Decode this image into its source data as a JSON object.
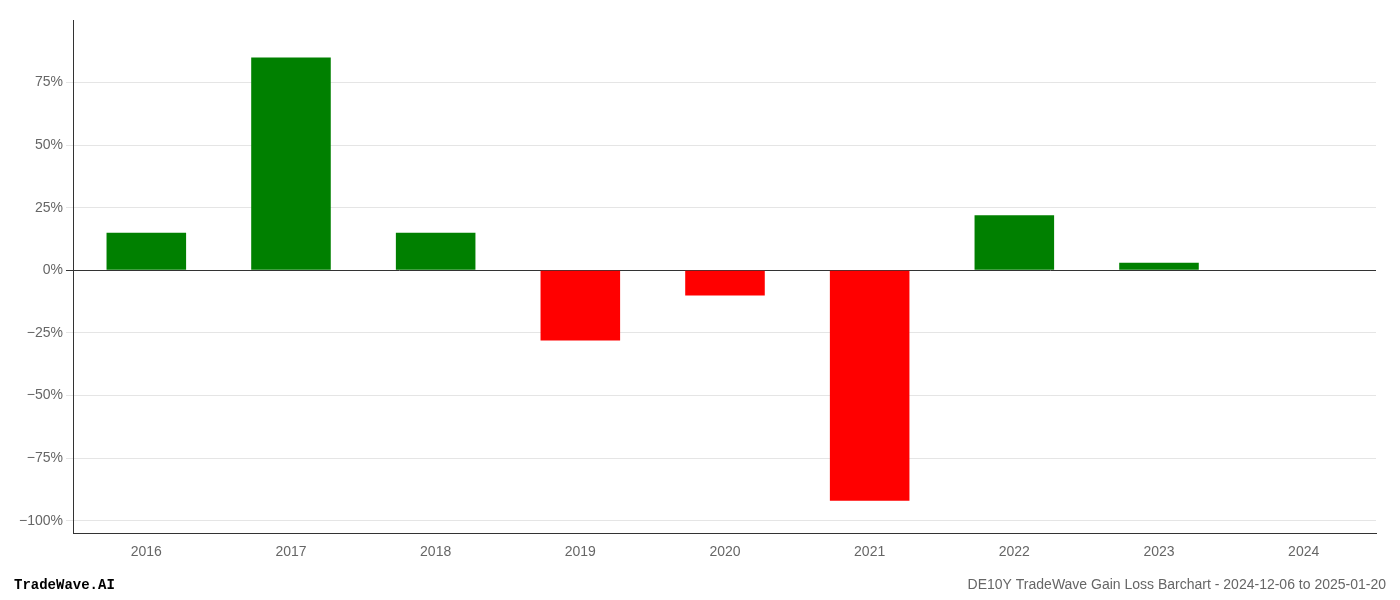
{
  "chart_data": {
    "type": "bar",
    "categories": [
      "2016",
      "2017",
      "2018",
      "2019",
      "2020",
      "2021",
      "2022",
      "2023",
      "2024"
    ],
    "values": [
      0.15,
      0.85,
      0.15,
      -0.28,
      -0.1,
      -0.92,
      0.22,
      0.03,
      0.0
    ],
    "colors": [
      "#008000",
      "#008000",
      "#008000",
      "#ff0000",
      "#ff0000",
      "#ff0000",
      "#008000",
      "#008000",
      "#008000"
    ],
    "ylim": [
      -1.05,
      1.0
    ],
    "yticks": [
      {
        "value": 0.75,
        "label": "75%"
      },
      {
        "value": 0.5,
        "label": "50%"
      },
      {
        "value": 0.25,
        "label": "25%"
      },
      {
        "value": 0.0,
        "label": "0%"
      },
      {
        "value": -0.25,
        "label": "−25%"
      },
      {
        "value": -0.5,
        "label": "−50%"
      },
      {
        "value": -0.75,
        "label": "−75%"
      },
      {
        "value": -1.0,
        "label": "−100%"
      }
    ],
    "grid": true,
    "annotations": [
      "TradeWave.AI",
      "DE10Y TradeWave Gain Loss Barchart - 2024-12-06 to 2025-01-20"
    ]
  }
}
